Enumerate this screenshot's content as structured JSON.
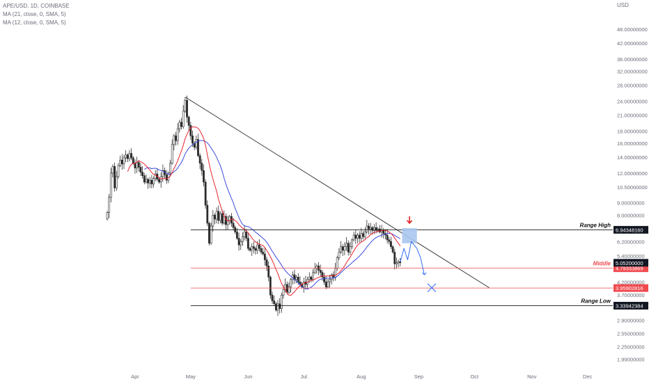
{
  "header": {
    "symbol": "APE/USD, 1D, COINBASE",
    "ma1": "MA (21, close, 0, SMA, 5)",
    "ma2": "MA (12, close, 0, SMA, 5)"
  },
  "axis_unit": "USD",
  "colors": {
    "up": "#2b2b2b",
    "down": "#2b2b2b",
    "ma21": "#3b4be0",
    "ma12": "#e8232d",
    "trendline": "#2b2b2b",
    "level_dark": "#1a1a1a",
    "level_red": "#f04a4f",
    "projection": "#2f6bf2",
    "zone_fill": "#a9c6ee",
    "arrow": "#e01e1e"
  },
  "chart_data": {
    "type": "candlestick",
    "y_scale": "log",
    "ylim": [
      1.82,
      58
    ],
    "x_range": [
      "2022-03-17",
      "2022-12-20"
    ],
    "y_ticks": [
      "48.00000000",
      "42.00000000",
      "36.00000000",
      "32.00000000",
      "28.00000000",
      "24.00000000",
      "21.00000000",
      "18.00000000",
      "16.00000000",
      "14.00000000",
      "12.00000000",
      "10.50000000",
      "9.00000000",
      "8.00000000",
      "6.20000000",
      "5.40000000",
      "4.20000000",
      "3.70000000",
      "2.90000000",
      "2.55000000",
      "2.25000000",
      "1.99000000"
    ],
    "x_ticks": [
      {
        "label": "Apr",
        "date": "2022-04-01"
      },
      {
        "label": "May",
        "date": "2022-05-01"
      },
      {
        "label": "Jun",
        "date": "2022-06-01"
      },
      {
        "label": "Jul",
        "date": "2022-07-01"
      },
      {
        "label": "Aug",
        "date": "2022-08-01"
      },
      {
        "label": "Sep",
        "date": "2022-09-01"
      },
      {
        "label": "Oct",
        "date": "2022-10-01"
      },
      {
        "label": "Nov",
        "date": "2022-11-01"
      },
      {
        "label": "Dec",
        "date": "2022-12-01"
      }
    ],
    "closes": [
      {
        "date": "2022-03-17",
        "close": 8.2
      },
      {
        "date": "2022-03-18",
        "close": 9.5
      },
      {
        "date": "2022-03-19",
        "close": 12.0
      },
      {
        "date": "2022-03-20",
        "close": 12.8
      },
      {
        "date": "2022-03-21",
        "close": 10.4
      },
      {
        "date": "2022-03-22",
        "close": 11.6
      },
      {
        "date": "2022-03-23",
        "close": 12.9
      },
      {
        "date": "2022-03-24",
        "close": 13.6
      },
      {
        "date": "2022-03-25",
        "close": 13.1
      },
      {
        "date": "2022-03-26",
        "close": 13.9
      },
      {
        "date": "2022-03-27",
        "close": 14.3
      },
      {
        "date": "2022-03-28",
        "close": 13.8
      },
      {
        "date": "2022-03-29",
        "close": 14.5
      },
      {
        "date": "2022-03-30",
        "close": 13.9
      },
      {
        "date": "2022-03-31",
        "close": 13.2
      },
      {
        "date": "2022-04-01",
        "close": 12.6
      },
      {
        "date": "2022-04-02",
        "close": 13.3
      },
      {
        "date": "2022-04-03",
        "close": 12.7
      },
      {
        "date": "2022-04-04",
        "close": 12.1
      },
      {
        "date": "2022-04-05",
        "close": 11.7
      },
      {
        "date": "2022-04-06",
        "close": 11.0
      },
      {
        "date": "2022-04-07",
        "close": 11.3
      },
      {
        "date": "2022-04-08",
        "close": 10.9
      },
      {
        "date": "2022-04-09",
        "close": 11.2
      },
      {
        "date": "2022-04-10",
        "close": 10.8
      },
      {
        "date": "2022-04-11",
        "close": 11.4
      },
      {
        "date": "2022-04-12",
        "close": 11.9
      },
      {
        "date": "2022-04-13",
        "close": 11.3
      },
      {
        "date": "2022-04-14",
        "close": 11.0
      },
      {
        "date": "2022-04-15",
        "close": 11.6
      },
      {
        "date": "2022-04-16",
        "close": 12.3
      },
      {
        "date": "2022-04-17",
        "close": 11.8
      },
      {
        "date": "2022-04-18",
        "close": 11.2
      },
      {
        "date": "2022-04-19",
        "close": 12.0
      },
      {
        "date": "2022-04-20",
        "close": 13.2
      },
      {
        "date": "2022-04-21",
        "close": 15.8
      },
      {
        "date": "2022-04-22",
        "close": 17.2
      },
      {
        "date": "2022-04-23",
        "close": 16.4
      },
      {
        "date": "2022-04-24",
        "close": 18.4
      },
      {
        "date": "2022-04-25",
        "close": 19.6
      },
      {
        "date": "2022-04-26",
        "close": 18.8
      },
      {
        "date": "2022-04-27",
        "close": 21.8
      },
      {
        "date": "2022-04-28",
        "close": 24.2
      },
      {
        "date": "2022-04-29",
        "close": 20.6
      },
      {
        "date": "2022-04-30",
        "close": 19.0
      },
      {
        "date": "2022-05-01",
        "close": 17.2
      },
      {
        "date": "2022-05-02",
        "close": 16.0
      },
      {
        "date": "2022-05-03",
        "close": 15.4
      },
      {
        "date": "2022-05-04",
        "close": 16.6
      },
      {
        "date": "2022-05-05",
        "close": 14.2
      },
      {
        "date": "2022-05-06",
        "close": 13.2
      },
      {
        "date": "2022-05-07",
        "close": 12.3
      },
      {
        "date": "2022-05-08",
        "close": 11.0
      },
      {
        "date": "2022-05-09",
        "close": 8.8
      },
      {
        "date": "2022-05-10",
        "close": 7.4
      },
      {
        "date": "2022-05-11",
        "close": 6.1
      },
      {
        "date": "2022-05-12",
        "close": 7.2
      },
      {
        "date": "2022-05-13",
        "close": 8.0
      },
      {
        "date": "2022-05-14",
        "close": 7.7
      },
      {
        "date": "2022-05-15",
        "close": 8.3
      },
      {
        "date": "2022-05-16",
        "close": 7.6
      },
      {
        "date": "2022-05-17",
        "close": 8.1
      },
      {
        "date": "2022-05-18",
        "close": 7.4
      },
      {
        "date": "2022-05-19",
        "close": 7.9
      },
      {
        "date": "2022-05-20",
        "close": 7.3
      },
      {
        "date": "2022-05-21",
        "close": 7.6
      },
      {
        "date": "2022-05-22",
        "close": 7.9
      },
      {
        "date": "2022-05-23",
        "close": 7.4
      },
      {
        "date": "2022-05-24",
        "close": 7.1
      },
      {
        "date": "2022-05-25",
        "close": 6.8
      },
      {
        "date": "2022-05-26",
        "close": 6.4
      },
      {
        "date": "2022-05-27",
        "close": 6.0
      },
      {
        "date": "2022-05-28",
        "close": 6.2
      },
      {
        "date": "2022-05-29",
        "close": 6.5
      },
      {
        "date": "2022-05-30",
        "close": 6.8
      },
      {
        "date": "2022-05-31",
        "close": 6.4
      },
      {
        "date": "2022-06-01",
        "close": 5.8
      },
      {
        "date": "2022-06-02",
        "close": 5.7
      },
      {
        "date": "2022-06-03",
        "close": 5.9
      },
      {
        "date": "2022-06-04",
        "close": 5.8
      },
      {
        "date": "2022-06-05",
        "close": 5.7
      },
      {
        "date": "2022-06-06",
        "close": 6.0
      },
      {
        "date": "2022-06-07",
        "close": 5.8
      },
      {
        "date": "2022-06-08",
        "close": 5.6
      },
      {
        "date": "2022-06-09",
        "close": 5.5
      },
      {
        "date": "2022-06-10",
        "close": 5.2
      },
      {
        "date": "2022-06-11",
        "close": 4.9
      },
      {
        "date": "2022-06-12",
        "close": 4.4
      },
      {
        "date": "2022-06-13",
        "close": 3.7
      },
      {
        "date": "2022-06-14",
        "close": 3.5
      },
      {
        "date": "2022-06-15",
        "close": 3.4
      },
      {
        "date": "2022-06-16",
        "close": 3.2
      },
      {
        "date": "2022-06-17",
        "close": 3.4
      },
      {
        "date": "2022-06-18",
        "close": 3.25
      },
      {
        "date": "2022-06-19",
        "close": 3.7
      },
      {
        "date": "2022-06-20",
        "close": 3.9
      },
      {
        "date": "2022-06-21",
        "close": 4.1
      },
      {
        "date": "2022-06-22",
        "close": 3.8
      },
      {
        "date": "2022-06-23",
        "close": 4.0
      },
      {
        "date": "2022-06-24",
        "close": 4.3
      },
      {
        "date": "2022-06-25",
        "close": 4.5
      },
      {
        "date": "2022-06-26",
        "close": 4.3
      },
      {
        "date": "2022-06-27",
        "close": 4.4
      },
      {
        "date": "2022-06-28",
        "close": 4.2
      },
      {
        "date": "2022-06-29",
        "close": 4.1
      },
      {
        "date": "2022-06-30",
        "close": 4.0
      },
      {
        "date": "2022-07-01",
        "close": 4.2
      },
      {
        "date": "2022-07-02",
        "close": 4.1
      },
      {
        "date": "2022-07-03",
        "close": 4.3
      },
      {
        "date": "2022-07-04",
        "close": 4.4
      },
      {
        "date": "2022-07-05",
        "close": 4.3
      },
      {
        "date": "2022-07-06",
        "close": 4.6
      },
      {
        "date": "2022-07-07",
        "close": 4.8
      },
      {
        "date": "2022-07-08",
        "close": 4.9
      },
      {
        "date": "2022-07-09",
        "close": 4.7
      },
      {
        "date": "2022-07-10",
        "close": 4.6
      },
      {
        "date": "2022-07-11",
        "close": 4.4
      },
      {
        "date": "2022-07-12",
        "close": 4.2
      },
      {
        "date": "2022-07-13",
        "close": 4.0
      },
      {
        "date": "2022-07-14",
        "close": 4.2
      },
      {
        "date": "2022-07-15",
        "close": 4.3
      },
      {
        "date": "2022-07-16",
        "close": 4.5
      },
      {
        "date": "2022-07-17",
        "close": 4.4
      },
      {
        "date": "2022-07-18",
        "close": 4.8
      },
      {
        "date": "2022-07-19",
        "close": 5.3
      },
      {
        "date": "2022-07-20",
        "close": 5.6
      },
      {
        "date": "2022-07-21",
        "close": 5.9
      },
      {
        "date": "2022-07-22",
        "close": 5.7
      },
      {
        "date": "2022-07-23",
        "close": 5.9
      },
      {
        "date": "2022-07-24",
        "close": 6.1
      },
      {
        "date": "2022-07-25",
        "close": 5.6
      },
      {
        "date": "2022-07-26",
        "close": 5.9
      },
      {
        "date": "2022-07-27",
        "close": 6.3
      },
      {
        "date": "2022-07-28",
        "close": 6.6
      },
      {
        "date": "2022-07-29",
        "close": 6.4
      },
      {
        "date": "2022-07-30",
        "close": 6.6
      },
      {
        "date": "2022-07-31",
        "close": 6.4
      },
      {
        "date": "2022-08-01",
        "close": 6.7
      },
      {
        "date": "2022-08-02",
        "close": 6.5
      },
      {
        "date": "2022-08-03",
        "close": 6.8
      },
      {
        "date": "2022-08-04",
        "close": 7.2
      },
      {
        "date": "2022-08-05",
        "close": 7.0
      },
      {
        "date": "2022-08-06",
        "close": 7.1
      },
      {
        "date": "2022-08-07",
        "close": 6.9
      },
      {
        "date": "2022-08-08",
        "close": 7.1
      },
      {
        "date": "2022-08-09",
        "close": 6.9
      },
      {
        "date": "2022-08-10",
        "close": 7.0
      },
      {
        "date": "2022-08-11",
        "close": 6.8
      },
      {
        "date": "2022-08-12",
        "close": 6.9
      },
      {
        "date": "2022-08-13",
        "close": 6.7
      },
      {
        "date": "2022-08-14",
        "close": 6.6
      },
      {
        "date": "2022-08-15",
        "close": 6.3
      },
      {
        "date": "2022-08-16",
        "close": 6.2
      },
      {
        "date": "2022-08-17",
        "close": 5.9
      },
      {
        "date": "2022-08-18",
        "close": 5.6
      },
      {
        "date": "2022-08-19",
        "close": 5.0
      },
      {
        "date": "2022-08-20",
        "close": 5.05
      },
      {
        "date": "2022-08-21",
        "close": 5.1
      },
      {
        "date": "2022-08-22",
        "close": 5.052
      }
    ],
    "indicators": [
      {
        "name": "MA (21, close, 0, SMA, 5)",
        "period": 21,
        "color": "#3b4be0"
      },
      {
        "name": "MA (12, close, 0, SMA, 5)",
        "period": 12,
        "color": "#e8232d"
      }
    ],
    "trendline": {
      "start": {
        "date": "2022-04-28",
        "value": 25.0
      },
      "end": {
        "date": "2022-10-09",
        "value": 3.97
      }
    },
    "levels": [
      {
        "key": "range_high",
        "value": 6.9434816,
        "label": "6.94348160",
        "text": "Range High",
        "style": "dark",
        "start_date": "2022-05-01"
      },
      {
        "key": "middle",
        "value": 4.79333869,
        "label": "4.79333869",
        "text": "Middle",
        "style": "red",
        "start_date": "2022-05-01"
      },
      {
        "key": "level_3_96",
        "value": 3.95902816,
        "label": "3.95902816",
        "text": "",
        "style": "red",
        "start_date": "2022-05-01"
      },
      {
        "key": "range_low",
        "value": 3.33942384,
        "label": "3.33942384",
        "text": "Range Low",
        "style": "dark",
        "start_date": "2022-05-01"
      }
    ],
    "current_price": {
      "value": 5.052,
      "label": "5.05200000"
    },
    "annotations": {
      "supply_zone": {
        "date_from": "2022-08-23",
        "date_to": "2022-08-31",
        "low": 6.1,
        "high": 7.05
      },
      "down_arrow": {
        "date": "2022-08-27",
        "value": 7.6
      },
      "projection_path": [
        {
          "date": "2022-08-22",
          "value": 5.1
        },
        {
          "date": "2022-08-24",
          "value": 5.8
        },
        {
          "date": "2022-08-26",
          "value": 5.2
        },
        {
          "date": "2022-08-28",
          "value": 6.2
        },
        {
          "date": "2022-08-31",
          "value": 5.8
        },
        {
          "date": "2022-09-02",
          "value": 5.3
        },
        {
          "date": "2022-09-04",
          "value": 4.5
        }
      ],
      "target_x": {
        "date": "2022-09-08",
        "value": 3.97
      }
    }
  }
}
